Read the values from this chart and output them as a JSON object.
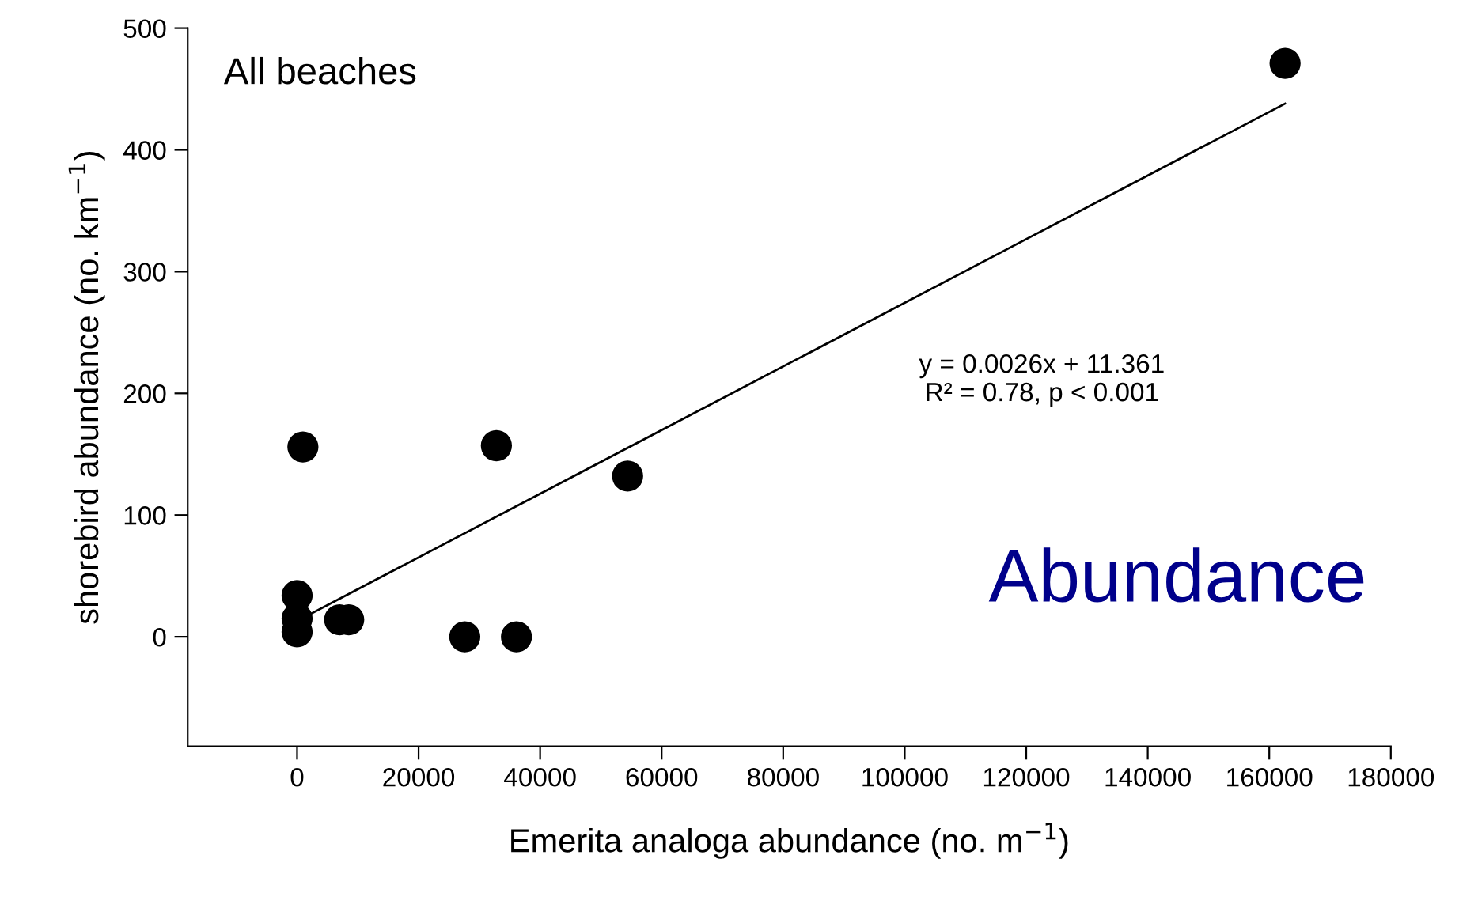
{
  "chart_data": {
    "type": "scatter",
    "xlabel": "Emerita analoga abundance (no. m$^{−1}$)",
    "ylabel": "shorebird abundance (no. km$^{−1}$)",
    "series": [
      {
        "color": "#000000",
        "marker": "circle",
        "x": [
          960,
          32800,
          54400,
          0,
          0,
          0,
          7000,
          8500,
          27600,
          36100,
          162600
        ],
        "values": [
          156,
          157,
          132,
          34,
          15,
          4,
          14,
          14,
          0,
          0,
          471
        ]
      },
      {
        "type": "line",
        "color": "#000000",
        "line_style": "solid",
        "marker": "none",
        "x": [
          2300,
          162600
        ],
        "values": [
          19,
          438
        ]
      }
    ],
    "xlim": [
      -18000,
      180000
    ],
    "ylim": [
      -90,
      500
    ],
    "xticks": [
      0,
      20000,
      40000,
      60000,
      80000,
      100000,
      120000,
      140000,
      160000,
      180000
    ],
    "yticks": [
      0,
      100,
      200,
      300,
      400,
      500
    ],
    "grid": false,
    "legend": false,
    "annotations": [
      "All beaches",
      "y = 0.0026x + 11.361\nR² = 0.78, p < 0.001",
      "Abundance"
    ]
  }
}
